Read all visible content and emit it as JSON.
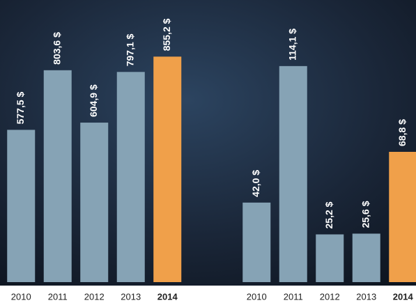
{
  "chart_data": [
    {
      "type": "bar",
      "categories": [
        "2010",
        "2011",
        "2012",
        "2013",
        "2014"
      ],
      "values": [
        577.5,
        803.6,
        604.9,
        797.1,
        855.2
      ],
      "value_labels": [
        "577,5 $",
        "803,6 $",
        "604,9 $",
        "797,1 $",
        "855,2 $"
      ],
      "colors": [
        "#86a3b5",
        "#86a3b5",
        "#86a3b5",
        "#86a3b5",
        "#f0a04a"
      ],
      "ylim": [
        0,
        1070
      ]
    },
    {
      "type": "bar",
      "categories": [
        "2010",
        "2011",
        "2012",
        "2013",
        "2014"
      ],
      "values": [
        42.0,
        114.1,
        25.2,
        25.6,
        68.8
      ],
      "value_labels": [
        "42,0 $",
        "114,1 $",
        "25,2 $",
        "25,6 $",
        "68,8 $"
      ],
      "colors": [
        "#86a3b5",
        "#86a3b5",
        "#86a3b5",
        "#86a3b5",
        "#f0a04a"
      ],
      "ylim": [
        0,
        149
      ]
    }
  ]
}
